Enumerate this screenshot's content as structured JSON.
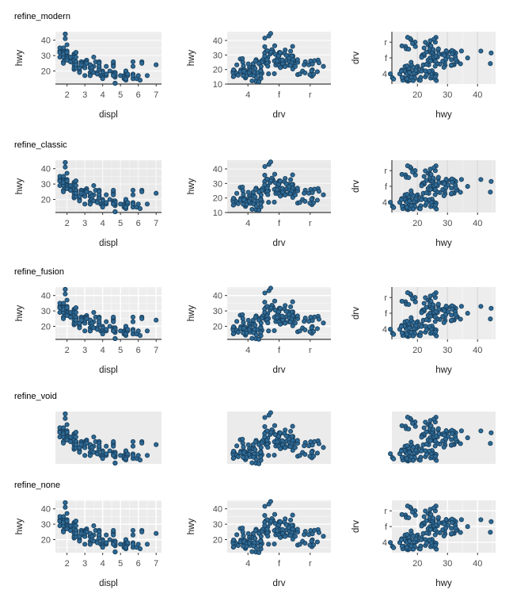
{
  "page": {
    "background_color": "#ffffff",
    "point_fill": "#2F6A95",
    "point_stroke": "#173E5C",
    "tick_text_color": "#4D4D4D",
    "axis_title_color": "#1A1A1A",
    "axis_line_color": "#3C3C3C"
  },
  "rows": [
    {
      "label": "refine_modern",
      "style": {
        "panel": "#EDEDED",
        "left_grid": "h",
        "major": "#FAFAFA",
        "minor": "#F3F3F3",
        "right_grid_color": "#DBDBDB",
        "right_grid_mode": "v",
        "axis_lines": true,
        "axes": true,
        "mid_y_ticks": [
          10,
          20,
          30,
          40
        ]
      }
    },
    {
      "label": "refine_classic",
      "style": {
        "panel": "#E9E9E9",
        "left_grid": "hv",
        "major": "#F6F6F6",
        "minor": "#F0F0F0",
        "right_grid_color": "#DBDBDB",
        "right_grid_mode": "v",
        "axis_lines": true,
        "axes": true,
        "mid_y_ticks": [
          10,
          20,
          30,
          40
        ]
      }
    },
    {
      "label": "refine_fusion",
      "style": {
        "panel": "#EDEDED",
        "left_grid": "hv",
        "major": "#FFFFFF",
        "minor": "#F5F5F5",
        "right_grid_color": "#DBDBDB",
        "right_grid_mode": "v",
        "axis_lines": true,
        "axes": true,
        "mid_y_ticks": [
          20,
          30,
          40
        ]
      }
    },
    {
      "label": "refine_void",
      "style": {
        "panel": "#EBEBEB",
        "left_grid": "none",
        "major": "#EBEBEB",
        "minor": "#EBEBEB",
        "right_grid_color": "#EBEBEB",
        "right_grid_mode": "v",
        "axis_lines": false,
        "axes": false,
        "mid_y_ticks": []
      }
    },
    {
      "label": "refine_none",
      "style": {
        "panel": "#EBEBEB",
        "left_grid": "hv",
        "major": "#FFFFFF",
        "minor": "#F4F4F4",
        "right_grid_color": "#FFFFFF",
        "right_grid_mode": "hv",
        "axis_lines": false,
        "axes": true,
        "mid_y_ticks": [
          20,
          30,
          40
        ]
      }
    }
  ],
  "chart_data": [
    {
      "type": "scatter",
      "id": "hwy_vs_displ",
      "xlabel": "displ",
      "ylabel": "hwy",
      "xticks": [
        2,
        3,
        4,
        5,
        6,
        7
      ],
      "yticks": [
        20,
        30,
        40
      ],
      "xminor": [
        1.5,
        2.5,
        3.5,
        4.5,
        5.5,
        6.5
      ],
      "yminor": [
        15,
        25,
        35,
        45
      ],
      "xlim": [
        1.35,
        7.3
      ],
      "ylim": [
        11.5,
        45.5
      ],
      "grid": "on",
      "legend": "none"
    },
    {
      "type": "scatter",
      "id": "hwy_vs_drv_jittered",
      "xlabel": "drv",
      "ylabel": "hwy",
      "categories": [
        "4",
        "f",
        "r"
      ],
      "yticks": [
        10,
        20,
        30,
        40
      ],
      "yminor": [
        15,
        25,
        35,
        45
      ],
      "ylim": [
        10,
        46
      ],
      "grid": "on",
      "legend": "none"
    },
    {
      "type": "scatter",
      "id": "drv_vs_hwy_jittered",
      "xlabel": "hwy",
      "ylabel": "drv",
      "categories": [
        "4",
        "f",
        "r"
      ],
      "xticks": [
        20,
        30,
        40
      ],
      "xminor": [
        15,
        25,
        35,
        45
      ],
      "xlim": [
        11.5,
        46
      ],
      "grid": "on",
      "legend": "none"
    }
  ],
  "dataset": {
    "fields": [
      "displ",
      "hwy",
      "drv"
    ],
    "points": [
      [
        1.6,
        33,
        "f"
      ],
      [
        1.6,
        32,
        "f"
      ],
      [
        1.6,
        32,
        "f"
      ],
      [
        1.6,
        29,
        "f"
      ],
      [
        1.6,
        35,
        "f"
      ],
      [
        1.8,
        33,
        "f"
      ],
      [
        1.8,
        32,
        "f"
      ],
      [
        1.8,
        32,
        "f"
      ],
      [
        1.8,
        29,
        "f"
      ],
      [
        1.8,
        35,
        "f"
      ],
      [
        1.8,
        29,
        "f"
      ],
      [
        1.8,
        29,
        "f"
      ],
      [
        1.8,
        31,
        "f"
      ],
      [
        1.9,
        44,
        "f"
      ],
      [
        1.9,
        44,
        "f"
      ],
      [
        1.9,
        41,
        "f"
      ],
      [
        2.0,
        31,
        "f"
      ],
      [
        2.0,
        30,
        "f"
      ],
      [
        2.0,
        33,
        "f"
      ],
      [
        2.0,
        32,
        "f"
      ],
      [
        2.0,
        32,
        "f"
      ],
      [
        2.0,
        29,
        "f"
      ],
      [
        2.0,
        29,
        "f"
      ],
      [
        2.0,
        37,
        "f"
      ],
      [
        2.2,
        26,
        "f"
      ],
      [
        2.2,
        27,
        "f"
      ],
      [
        2.2,
        29,
        "f"
      ],
      [
        2.2,
        26,
        "f"
      ],
      [
        2.4,
        31,
        "f"
      ],
      [
        2.4,
        31,
        "f"
      ],
      [
        2.4,
        30,
        "f"
      ],
      [
        2.4,
        29,
        "f"
      ],
      [
        2.4,
        27,
        "f"
      ],
      [
        2.4,
        24,
        "f"
      ],
      [
        2.5,
        32,
        "f"
      ],
      [
        2.5,
        32,
        "f"
      ],
      [
        2.5,
        29,
        "f"
      ],
      [
        2.5,
        26,
        "f"
      ],
      [
        2.5,
        26,
        "f"
      ],
      [
        2.5,
        25,
        "f"
      ],
      [
        2.8,
        26,
        "f"
      ],
      [
        2.8,
        25,
        "f"
      ],
      [
        2.8,
        26,
        "f"
      ],
      [
        2.8,
        23,
        "f"
      ],
      [
        2.8,
        24,
        "f"
      ],
      [
        3.0,
        26,
        "f"
      ],
      [
        3.0,
        25,
        "f"
      ],
      [
        3.0,
        24,
        "f"
      ],
      [
        3.0,
        22,
        "f"
      ],
      [
        3.0,
        24,
        "f"
      ],
      [
        3.1,
        27,
        "f"
      ],
      [
        3.1,
        26,
        "f"
      ],
      [
        3.1,
        25,
        "f"
      ],
      [
        3.3,
        22,
        "f"
      ],
      [
        3.3,
        22,
        "f"
      ],
      [
        3.3,
        24,
        "f"
      ],
      [
        3.3,
        24,
        "f"
      ],
      [
        3.3,
        17,
        "f"
      ],
      [
        3.5,
        29,
        "f"
      ],
      [
        3.5,
        23,
        "f"
      ],
      [
        3.6,
        26,
        "f"
      ],
      [
        3.8,
        26,
        "f"
      ],
      [
        3.8,
        25,
        "f"
      ],
      [
        3.8,
        23,
        "f"
      ],
      [
        3.8,
        22,
        "f"
      ],
      [
        3.8,
        21,
        "f"
      ],
      [
        4.0,
        18,
        "f"
      ],
      [
        1.8,
        26,
        "4"
      ],
      [
        1.8,
        25,
        "4"
      ],
      [
        2.0,
        28,
        "4"
      ],
      [
        2.0,
        27,
        "4"
      ],
      [
        2.2,
        26,
        "4"
      ],
      [
        2.4,
        21,
        "4"
      ],
      [
        2.4,
        22,
        "4"
      ],
      [
        2.5,
        26,
        "4"
      ],
      [
        2.5,
        25,
        "4"
      ],
      [
        2.5,
        23,
        "4"
      ],
      [
        2.5,
        26,
        "4"
      ],
      [
        2.5,
        22,
        "4"
      ],
      [
        2.5,
        24,
        "4"
      ],
      [
        2.7,
        20,
        "4"
      ],
      [
        2.7,
        20,
        "4"
      ],
      [
        2.7,
        22,
        "4"
      ],
      [
        2.7,
        19,
        "4"
      ],
      [
        2.8,
        25,
        "4"
      ],
      [
        2.8,
        24,
        "4"
      ],
      [
        3.0,
        17,
        "4"
      ],
      [
        3.1,
        25,
        "4"
      ],
      [
        3.1,
        25,
        "4"
      ],
      [
        3.3,
        19,
        "4"
      ],
      [
        3.3,
        17,
        "4"
      ],
      [
        3.4,
        19,
        "4"
      ],
      [
        3.4,
        22,
        "4"
      ],
      [
        3.4,
        20,
        "4"
      ],
      [
        3.5,
        19,
        "4"
      ],
      [
        3.7,
        19,
        "4"
      ],
      [
        3.7,
        18,
        "4"
      ],
      [
        3.9,
        17,
        "4"
      ],
      [
        3.9,
        17,
        "4"
      ],
      [
        4.0,
        20,
        "4"
      ],
      [
        4.0,
        19,
        "4"
      ],
      [
        4.0,
        17,
        "4"
      ],
      [
        4.0,
        16,
        "4"
      ],
      [
        4.0,
        15,
        "4"
      ],
      [
        4.2,
        23,
        "4"
      ],
      [
        4.2,
        18,
        "4"
      ],
      [
        4.4,
        20,
        "4"
      ],
      [
        4.6,
        19,
        "4"
      ],
      [
        4.6,
        18,
        "4"
      ],
      [
        4.6,
        17,
        "4"
      ],
      [
        4.7,
        19,
        "4"
      ],
      [
        4.7,
        19,
        "4"
      ],
      [
        4.7,
        17,
        "4"
      ],
      [
        4.7,
        17,
        "4"
      ],
      [
        4.7,
        16,
        "4"
      ],
      [
        4.7,
        12,
        "4"
      ],
      [
        4.7,
        12,
        "4"
      ],
      [
        4.7,
        12,
        "4"
      ],
      [
        4.7,
        17,
        "4"
      ],
      [
        4.7,
        18,
        "4"
      ],
      [
        5.2,
        17,
        "4"
      ],
      [
        5.2,
        15,
        "4"
      ],
      [
        5.2,
        16,
        "4"
      ],
      [
        5.3,
        19,
        "4"
      ],
      [
        5.3,
        14,
        "4"
      ],
      [
        5.3,
        16,
        "4"
      ],
      [
        5.4,
        18,
        "4"
      ],
      [
        5.4,
        17,
        "4"
      ],
      [
        5.7,
        15,
        "4"
      ],
      [
        5.7,
        18,
        "4"
      ],
      [
        5.9,
        15,
        "4"
      ],
      [
        6.1,
        14,
        "4"
      ],
      [
        6.5,
        17,
        "4"
      ],
      [
        3.8,
        26,
        "r"
      ],
      [
        3.8,
        25,
        "r"
      ],
      [
        3.8,
        23,
        "r"
      ],
      [
        4.2,
        17,
        "r"
      ],
      [
        4.2,
        18,
        "r"
      ],
      [
        4.6,
        24,
        "r"
      ],
      [
        4.6,
        25,
        "r"
      ],
      [
        4.6,
        26,
        "r"
      ],
      [
        4.6,
        23,
        "r"
      ],
      [
        4.6,
        17,
        "r"
      ],
      [
        5.0,
        17,
        "r"
      ],
      [
        5.3,
        20,
        "r"
      ],
      [
        5.3,
        20,
        "r"
      ],
      [
        5.3,
        15,
        "r"
      ],
      [
        5.4,
        17,
        "r"
      ],
      [
        5.4,
        18,
        "r"
      ],
      [
        5.7,
        26,
        "r"
      ],
      [
        5.7,
        23,
        "r"
      ],
      [
        5.7,
        17,
        "r"
      ],
      [
        6.0,
        17,
        "r"
      ],
      [
        6.2,
        26,
        "r"
      ],
      [
        6.2,
        25,
        "r"
      ],
      [
        7.0,
        24,
        "r"
      ]
    ]
  }
}
